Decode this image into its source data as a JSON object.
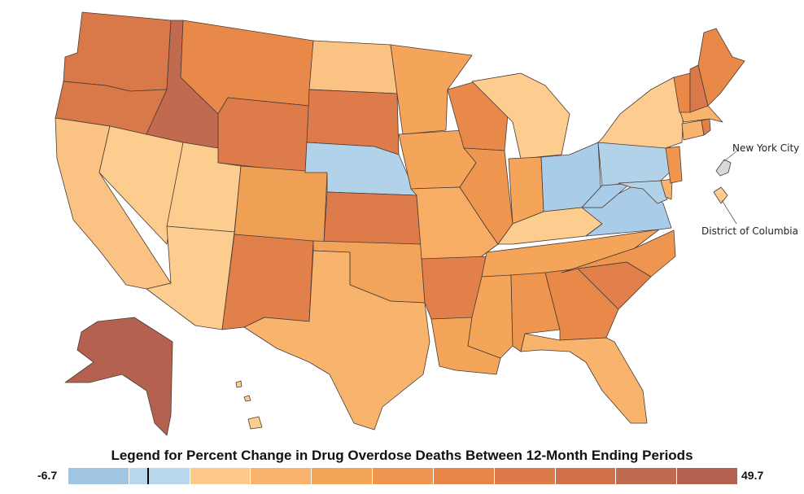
{
  "legend": {
    "title": "Legend for Percent Change in Drug Overdose Deaths Between 12-Month Ending Periods",
    "min": "-6.7",
    "max": "49.7",
    "zero_value": 0,
    "colors": [
      "#9fc5e2",
      "#b8d6ec",
      "#fdc98a",
      "#f8b46c",
      "#f4a55a",
      "#ee9650",
      "#e88648",
      "#dd7a4a",
      "#cf704b",
      "#c26a50",
      "#b4624f"
    ]
  },
  "callouts": {
    "nyc": "New York City",
    "dc": "District of Columbia"
  },
  "regions": {
    "washington": "#d9794a",
    "oregon": "#d9794a",
    "california": "#fbc383",
    "nevada": "#fdcc8f",
    "idaho": "#c26a50",
    "montana": "#e8894a",
    "wyoming": "#dd7b4b",
    "utah": "#fdcc8f",
    "arizona": "#fdcc8f",
    "colorado": "#f0a055",
    "new_mexico": "#e2804b",
    "north_dakota": "#fbc383",
    "south_dakota": "#dd7b4b",
    "nebraska": "#b2d2ea",
    "kansas": "#dd7b4b",
    "oklahoma": "#f3a45b",
    "texas": "#f8b46c",
    "minnesota": "#f4a55a",
    "iowa": "#f4a55a",
    "missouri": "#f7ad64",
    "arkansas": "#e2804b",
    "louisiana": "#f4a55a",
    "wisconsin": "#e8894a",
    "illinois": "#ee9650",
    "michigan": "#fdcc8f",
    "indiana": "#f4a55a",
    "ohio": "#a9cde8",
    "kentucky": "#fdcc8f",
    "tennessee": "#f4a55a",
    "mississippi": "#f4a55a",
    "alabama": "#ee9650",
    "georgia": "#e8894a",
    "florida": "#f8b46c",
    "south_carolina": "#e2804b",
    "north_carolina": "#ee9650",
    "virginia": "#a9cde8",
    "west_virginia": "#a9cde8",
    "pennsylvania": "#b2d2ea",
    "new_york": "#fdcc8f",
    "new_jersey": "#ee9650",
    "delaware": "#f8b46c",
    "maryland": "#b2d2ea",
    "connecticut": "#f8b46c",
    "rhode_island": "#e2804b",
    "massachusetts": "#f8b46c",
    "vermont": "#e8894a",
    "new_hampshire": "#d9794a",
    "maine": "#e8894a",
    "alaska": "#b4624f",
    "hawaii": "#fdcc8f",
    "nyc": "#d8d8d8",
    "dc": "#fdcc8f"
  }
}
